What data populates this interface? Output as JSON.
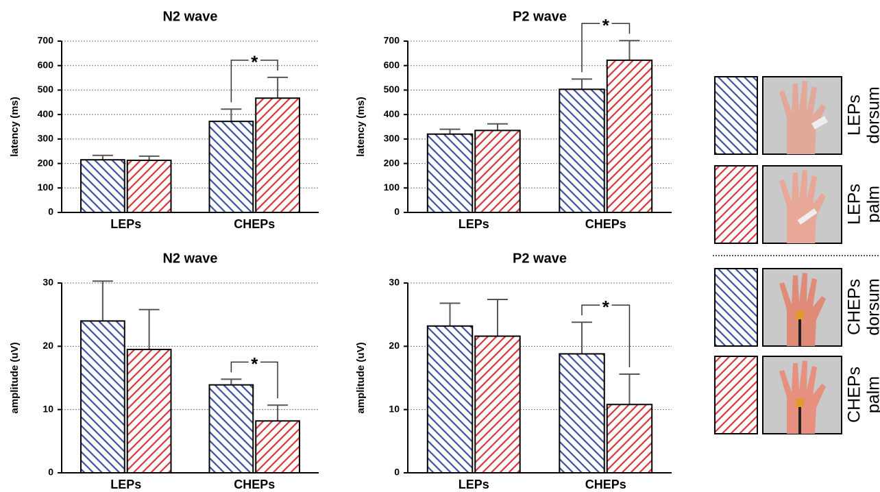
{
  "chart_data": [
    {
      "type": "bar",
      "title": "N2 wave",
      "y_label": "latency (ms)",
      "categories": [
        "LEPs",
        "CHEPs"
      ],
      "series": [
        {
          "color": "#3b4fa0",
          "hatch": "backslash",
          "values": [
            215,
            372
          ],
          "errors": [
            18,
            50
          ]
        },
        {
          "color": "#d9333a",
          "hatch": "slash",
          "values": [
            213,
            467
          ],
          "errors": [
            17,
            85
          ]
        }
      ],
      "ylim": [
        0,
        700
      ],
      "yticks": [
        0,
        100,
        200,
        300,
        400,
        500,
        600,
        700
      ],
      "grid": true,
      "annotations": [
        {
          "text": "*",
          "category": 1
        }
      ]
    },
    {
      "type": "bar",
      "title": "P2 wave",
      "y_label": "latency (ms)",
      "categories": [
        "LEPs",
        "CHEPs"
      ],
      "series": [
        {
          "color": "#3b4fa0",
          "hatch": "backslash",
          "values": [
            320,
            503
          ],
          "errors": [
            20,
            42
          ]
        },
        {
          "color": "#d9333a",
          "hatch": "slash",
          "values": [
            335,
            622
          ],
          "errors": [
            27,
            80
          ]
        }
      ],
      "ylim": [
        0,
        700
      ],
      "yticks": [
        0,
        100,
        200,
        300,
        400,
        500,
        600,
        700
      ],
      "grid": true,
      "annotations": [
        {
          "text": "*",
          "category": 1
        }
      ]
    },
    {
      "type": "bar",
      "title": "N2 wave",
      "y_label": "amplitude (uV)",
      "categories": [
        "LEPs",
        "CHEPs"
      ],
      "series": [
        {
          "color": "#3b4fa0",
          "hatch": "backslash",
          "values": [
            24,
            13.9
          ],
          "errors": [
            6.3,
            0.9
          ]
        },
        {
          "color": "#d9333a",
          "hatch": "slash",
          "values": [
            19.5,
            8.2
          ],
          "errors": [
            6.3,
            2.5
          ]
        }
      ],
      "ylim": [
        0,
        30
      ],
      "yticks": [
        0,
        10,
        20,
        30
      ],
      "grid": true,
      "annotations": [
        {
          "text": "*",
          "category": 1
        }
      ]
    },
    {
      "type": "bar",
      "title": "P2 wave",
      "y_label": "amplitude (uV)",
      "categories": [
        "LEPs",
        "CHEPs"
      ],
      "series": [
        {
          "color": "#3b4fa0",
          "hatch": "backslash",
          "values": [
            23.2,
            18.8
          ],
          "errors": [
            3.6,
            5
          ]
        },
        {
          "color": "#d9333a",
          "hatch": "slash",
          "values": [
            21.6,
            10.8
          ],
          "errors": [
            5.8,
            4.8
          ]
        }
      ],
      "ylim": [
        0,
        30
      ],
      "yticks": [
        0,
        10,
        20,
        30
      ],
      "grid": true,
      "annotations": [
        {
          "text": "*",
          "category": 1
        }
      ]
    }
  ],
  "legend": [
    {
      "lines": [
        "LEPs",
        "dorsum"
      ],
      "color": "#3b4fa0",
      "hatch": "backslash"
    },
    {
      "lines": [
        "LEPs",
        "palm"
      ],
      "color": "#d9333a",
      "hatch": "slash"
    },
    {
      "lines": [
        "CHEPs",
        "dorsum"
      ],
      "color": "#3b4fa0",
      "hatch": "backslash"
    },
    {
      "lines": [
        "CHEPs",
        "palm"
      ],
      "color": "#d9333a",
      "hatch": "slash"
    }
  ]
}
